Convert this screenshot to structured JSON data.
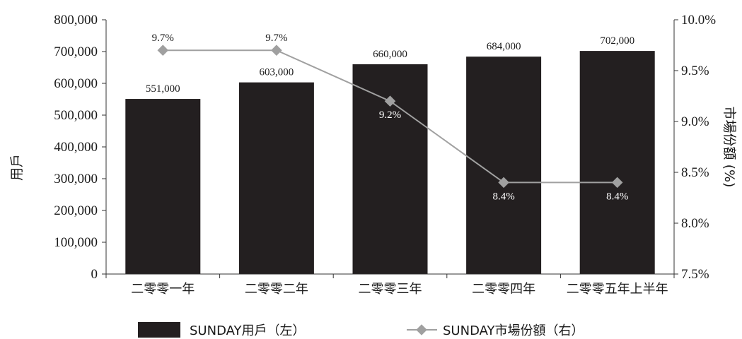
{
  "chart_data": {
    "type": "bar",
    "categories": [
      "二零零一年",
      "二零零二年",
      "二零零三年",
      "二零零四年",
      "二零零五年上半年"
    ],
    "series": [
      {
        "name": "SUNDAY用戶（左）",
        "type": "bar",
        "axis": "left",
        "values": [
          551000,
          603000,
          660000,
          684000,
          702000
        ],
        "labels": [
          "551,000",
          "603,000",
          "660,000",
          "684,000",
          "702,000"
        ],
        "color": "#231f20"
      },
      {
        "name": "SUNDAY市場份額（右）",
        "type": "line",
        "axis": "right",
        "values": [
          9.7,
          9.7,
          9.2,
          8.4,
          8.4
        ],
        "labels": [
          "9.7%",
          "9.7%",
          "9.2%",
          "8.4%",
          "8.4%"
        ],
        "color": "#a0a0a0"
      }
    ],
    "ylabel_left": "用戶",
    "ylabel_right": "市場份額 (%)",
    "ylim_left": [
      0,
      800000
    ],
    "yticks_left": [
      "0",
      "100,000",
      "200,000",
      "300,000",
      "400,000",
      "500,000",
      "600,000",
      "700,000",
      "800,000"
    ],
    "ylim_right": [
      7.5,
      10.0
    ],
    "yticks_right": [
      "7.5%",
      "8.0%",
      "8.5%",
      "9.0%",
      "9.5%",
      "10.0%"
    ],
    "grid": false,
    "legend_position": "bottom"
  }
}
